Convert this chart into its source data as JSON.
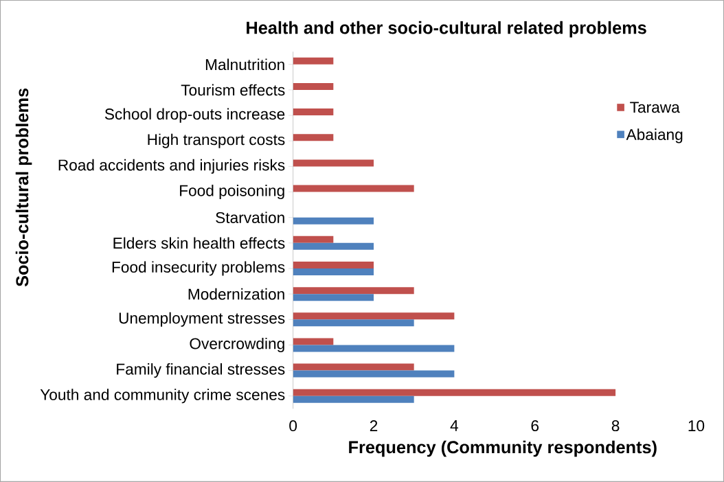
{
  "chart_data": {
    "type": "bar",
    "orientation": "horizontal",
    "title": "Health and other socio-cultural related problems",
    "xlabel": "Frequency (Community respondents)",
    "ylabel": "Socio-cultural problems",
    "categories": [
      "Malnutrition",
      "Tourism effects",
      "School drop-outs increase",
      "High transport costs",
      "Road accidents and injuries risks",
      "Food poisoning",
      "Starvation",
      "Elders skin health effects",
      "Food insecurity problems",
      "Modernization",
      "Unemployment stresses",
      "Overcrowding",
      "Family financial stresses",
      "Youth and community crime scenes"
    ],
    "series": [
      {
        "name": "Tarawa",
        "color": "#c0504d",
        "values": [
          1,
          1,
          1,
          1,
          2,
          3,
          null,
          1,
          2,
          3,
          4,
          1,
          3,
          8
        ]
      },
      {
        "name": "Abaiang",
        "color": "#4f81bd",
        "values": [
          null,
          null,
          null,
          null,
          null,
          null,
          2,
          2,
          2,
          2,
          3,
          4,
          4,
          3
        ]
      }
    ],
    "xlim": [
      0,
      10
    ],
    "xticks": [
      0,
      2,
      4,
      6,
      8,
      10
    ],
    "legend": "right",
    "grid": false
  }
}
